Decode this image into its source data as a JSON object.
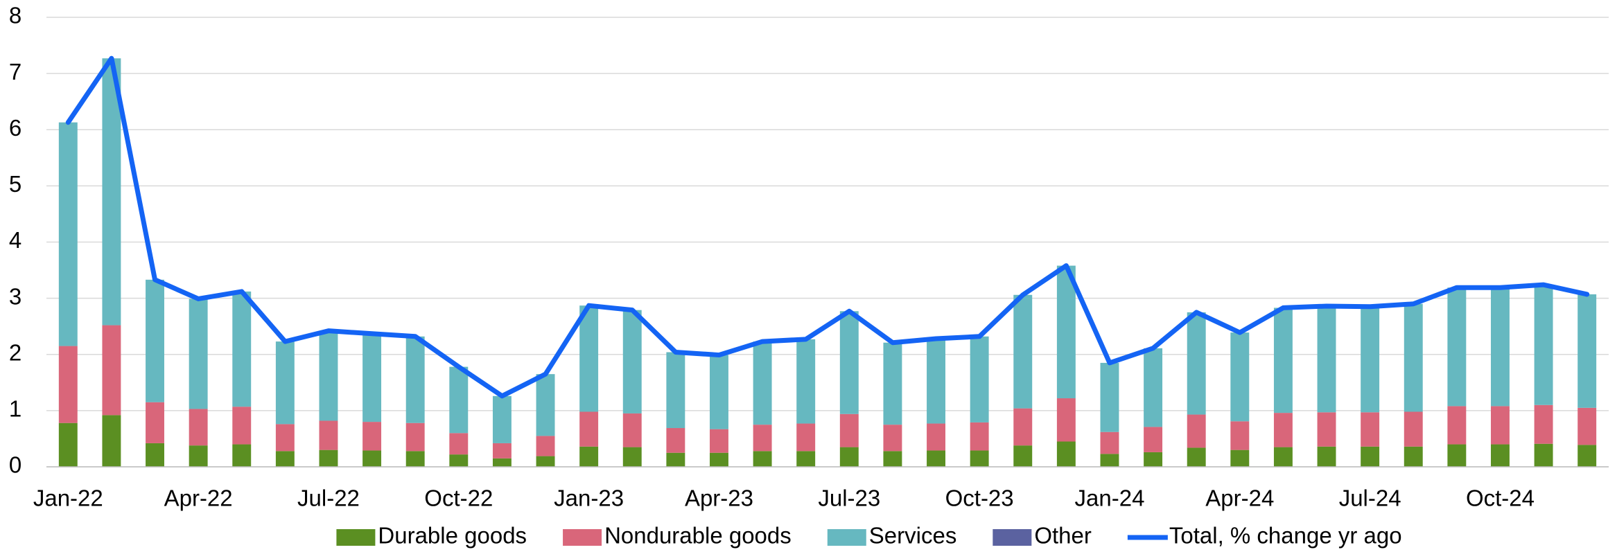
{
  "chart_data": {
    "type": "bar",
    "stacked": true,
    "categories": [
      "Jan-22",
      null,
      null,
      "Apr-22",
      null,
      null,
      "Jul-22",
      null,
      null,
      "Oct-22",
      null,
      null,
      "Jan-23",
      null,
      null,
      "Apr-23",
      null,
      null,
      "Jul-23",
      null,
      null,
      "Oct-23",
      null,
      null,
      "Jan-24",
      null,
      null,
      "Apr-24",
      null,
      null,
      "Jul-24",
      null,
      null,
      "Oct-24",
      null,
      null
    ],
    "series": [
      {
        "name": "Durable goods",
        "color": "#5b8f22",
        "type": "bar",
        "values": [
          0.78,
          0.92,
          0.42,
          0.38,
          0.4,
          0.28,
          0.3,
          0.29,
          0.28,
          0.22,
          0.15,
          0.19,
          0.36,
          0.35,
          0.25,
          0.25,
          0.28,
          0.28,
          0.35,
          0.28,
          0.29,
          0.29,
          0.38,
          0.45,
          0.23,
          0.26,
          0.34,
          0.3,
          0.35,
          0.36,
          0.36,
          0.36,
          0.4,
          0.4,
          0.41,
          0.39
        ]
      },
      {
        "name": "Nondurable goods",
        "color": "#d9667a",
        "type": "bar",
        "values": [
          1.37,
          1.6,
          0.73,
          0.65,
          0.67,
          0.48,
          0.52,
          0.51,
          0.5,
          0.38,
          0.27,
          0.36,
          0.62,
          0.6,
          0.44,
          0.42,
          0.47,
          0.49,
          0.59,
          0.47,
          0.48,
          0.5,
          0.66,
          0.77,
          0.39,
          0.45,
          0.59,
          0.51,
          0.61,
          0.61,
          0.61,
          0.62,
          0.68,
          0.68,
          0.69,
          0.66
        ]
      },
      {
        "name": "Services",
        "color": "#66b8c0",
        "type": "bar",
        "values": [
          3.98,
          4.75,
          2.18,
          1.96,
          2.05,
          1.47,
          1.6,
          1.57,
          1.54,
          1.18,
          0.84,
          1.1,
          1.89,
          1.84,
          1.35,
          1.32,
          1.48,
          1.5,
          1.83,
          1.46,
          1.51,
          1.53,
          2.02,
          2.36,
          1.23,
          1.4,
          1.82,
          1.58,
          1.87,
          1.89,
          1.88,
          1.92,
          2.11,
          2.11,
          2.14,
          2.02
        ]
      },
      {
        "name": "Other",
        "color": "#5b62a0",
        "type": "bar",
        "values": [
          0,
          0,
          0,
          0,
          0,
          0,
          0,
          0,
          0,
          0,
          0,
          0,
          0,
          0,
          0,
          0,
          0,
          0,
          0,
          0,
          0,
          0,
          0,
          0,
          0,
          0,
          0,
          0,
          0,
          0,
          0,
          0,
          0,
          0,
          0,
          0
        ]
      },
      {
        "name": "Total, % change yr ago",
        "color": "#1464f4",
        "type": "line",
        "values": [
          6.13,
          7.27,
          3.33,
          2.99,
          3.12,
          2.23,
          2.42,
          2.37,
          2.32,
          1.78,
          1.26,
          1.65,
          2.87,
          2.79,
          2.04,
          1.99,
          2.23,
          2.27,
          2.77,
          2.21,
          2.28,
          2.32,
          3.06,
          3.58,
          1.85,
          2.11,
          2.75,
          2.39,
          2.83,
          2.86,
          2.85,
          2.9,
          3.19,
          3.19,
          3.24,
          3.07
        ]
      }
    ],
    "ylim": [
      0,
      8
    ],
    "yticks": [
      0,
      1,
      2,
      3,
      4,
      5,
      6,
      7,
      8
    ],
    "grid": true,
    "legend": "bottom"
  }
}
